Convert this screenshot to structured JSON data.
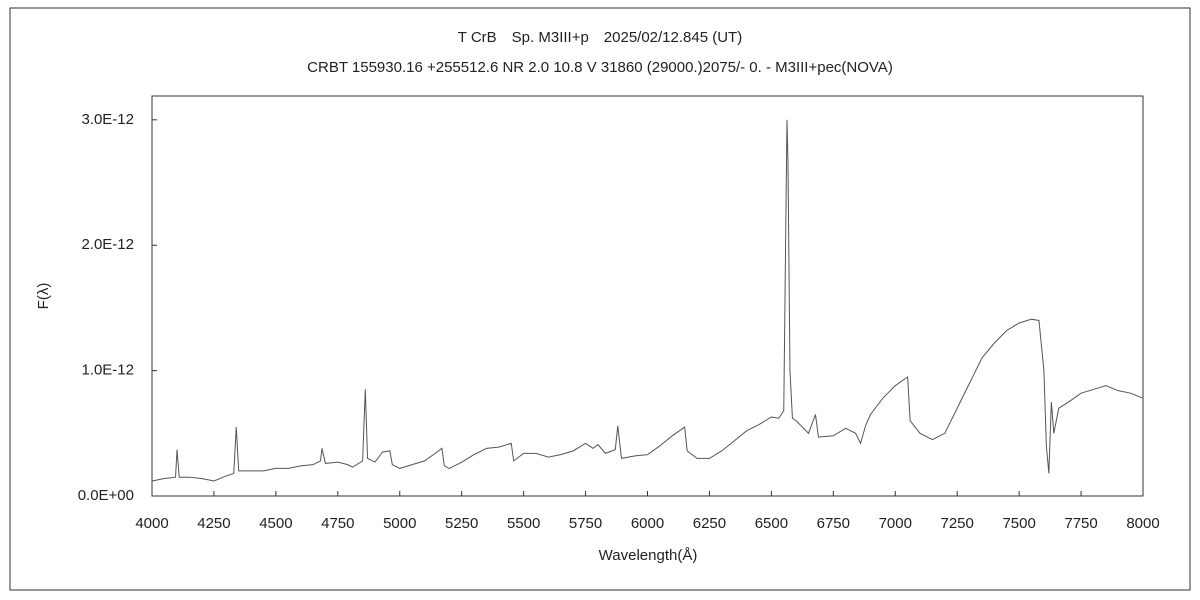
{
  "chart_data": {
    "type": "line",
    "title": "T CrB　Sp. M3III+p　2025/02/12.845 (UT)",
    "subtitle": "CRBT 155930.16 +255512.6 NR 2.0 10.8 V 31860 (29000.)2075/-  0. - M3III+pec(NOVA)",
    "x_label": "Wavelength(Å)",
    "y_label": "F(λ)",
    "xlim": [
      4000,
      8000
    ],
    "xticks": [
      4000,
      4250,
      4500,
      4750,
      5000,
      5250,
      5500,
      5750,
      6000,
      6250,
      6500,
      6750,
      7000,
      7250,
      7500,
      7750,
      8000
    ],
    "ylim": [
      0,
      3.19e-12
    ],
    "yticks": [
      {
        "value": 0,
        "label": "0.0E+00"
      },
      {
        "value": 1e-12,
        "label": "1.0E-12"
      },
      {
        "value": 2e-12,
        "label": "2.0E-12"
      },
      {
        "value": 3e-12,
        "label": "3.0E-12"
      }
    ],
    "grid": false,
    "series": [
      {
        "color": "#555555",
        "x": [
          4000,
          4050,
          4095,
          4101,
          4110,
          4150,
          4200,
          4250,
          4300,
          4330,
          4340,
          4350,
          4400,
          4450,
          4500,
          4550,
          4600,
          4650,
          4680,
          4686,
          4700,
          4750,
          4790,
          4810,
          4850,
          4861,
          4870,
          4900,
          4930,
          4960,
          4970,
          5000,
          5050,
          5100,
          5150,
          5170,
          5180,
          5200,
          5250,
          5300,
          5350,
          5400,
          5450,
          5460,
          5500,
          5550,
          5600,
          5650,
          5700,
          5750,
          5780,
          5800,
          5830,
          5870,
          5880,
          5895,
          5950,
          6000,
          6050,
          6100,
          6150,
          6160,
          6200,
          6250,
          6300,
          6350,
          6400,
          6450,
          6500,
          6530,
          6550,
          6563,
          6567,
          6575,
          6585,
          6600,
          6650,
          6678,
          6690,
          6750,
          6800,
          6840,
          6860,
          6880,
          6900,
          6950,
          7000,
          7050,
          7060,
          7100,
          7150,
          7200,
          7250,
          7300,
          7350,
          7400,
          7450,
          7500,
          7550,
          7580,
          7600,
          7610,
          7620,
          7630,
          7640,
          7660,
          7700,
          7750,
          7800,
          7850,
          7900,
          7950,
          8000
        ],
        "values": [
          1.2e-13,
          1.4e-13,
          1.5e-13,
          3.7e-13,
          1.5e-13,
          1.5e-13,
          1.4e-13,
          1.2e-13,
          1.6e-13,
          1.8e-13,
          5.5e-13,
          2e-13,
          2e-13,
          2e-13,
          2.2e-13,
          2.2e-13,
          2.4e-13,
          2.5e-13,
          2.8e-13,
          3.8e-13,
          2.6e-13,
          2.7e-13,
          2.5e-13,
          2.3e-13,
          2.8e-13,
          8.5e-13,
          3e-13,
          2.7e-13,
          3.5e-13,
          3.6e-13,
          2.5e-13,
          2.2e-13,
          2.5e-13,
          2.8e-13,
          3.5e-13,
          3.8e-13,
          2.4e-13,
          2.2e-13,
          2.7e-13,
          3.3e-13,
          3.8e-13,
          3.9e-13,
          4.2e-13,
          2.8e-13,
          3.4e-13,
          3.4e-13,
          3.1e-13,
          3.3e-13,
          3.6e-13,
          4.2e-13,
          3.8e-13,
          4.1e-13,
          3.4e-13,
          3.7e-13,
          5.6e-13,
          3e-13,
          3.2e-13,
          3.3e-13,
          4e-13,
          4.8e-13,
          5.5e-13,
          3.6e-13,
          3e-13,
          3e-13,
          3.6e-13,
          4.4e-13,
          5.2e-13,
          5.7e-13,
          6.3e-13,
          6.2e-13,
          6.8e-13,
          3e-12,
          2.67e-12,
          1e-12,
          6.2e-13,
          6e-13,
          5e-13,
          6.5e-13,
          4.7e-13,
          4.8e-13,
          5.4e-13,
          5e-13,
          4.2e-13,
          5.6e-13,
          6.5e-13,
          7.8e-13,
          8.8e-13,
          9.5e-13,
          6e-13,
          5e-13,
          4.5e-13,
          5e-13,
          7e-13,
          9e-13,
          1.1e-12,
          1.22e-12,
          1.32e-12,
          1.38e-12,
          1.41e-12,
          1.4e-12,
          1e-12,
          4e-13,
          1.8e-13,
          7.5e-13,
          5e-13,
          7e-13,
          7.5e-13,
          8.2e-13,
          8.5e-13,
          8.8e-13,
          8.4e-13,
          8.2e-13,
          7.8e-13
        ]
      }
    ]
  }
}
